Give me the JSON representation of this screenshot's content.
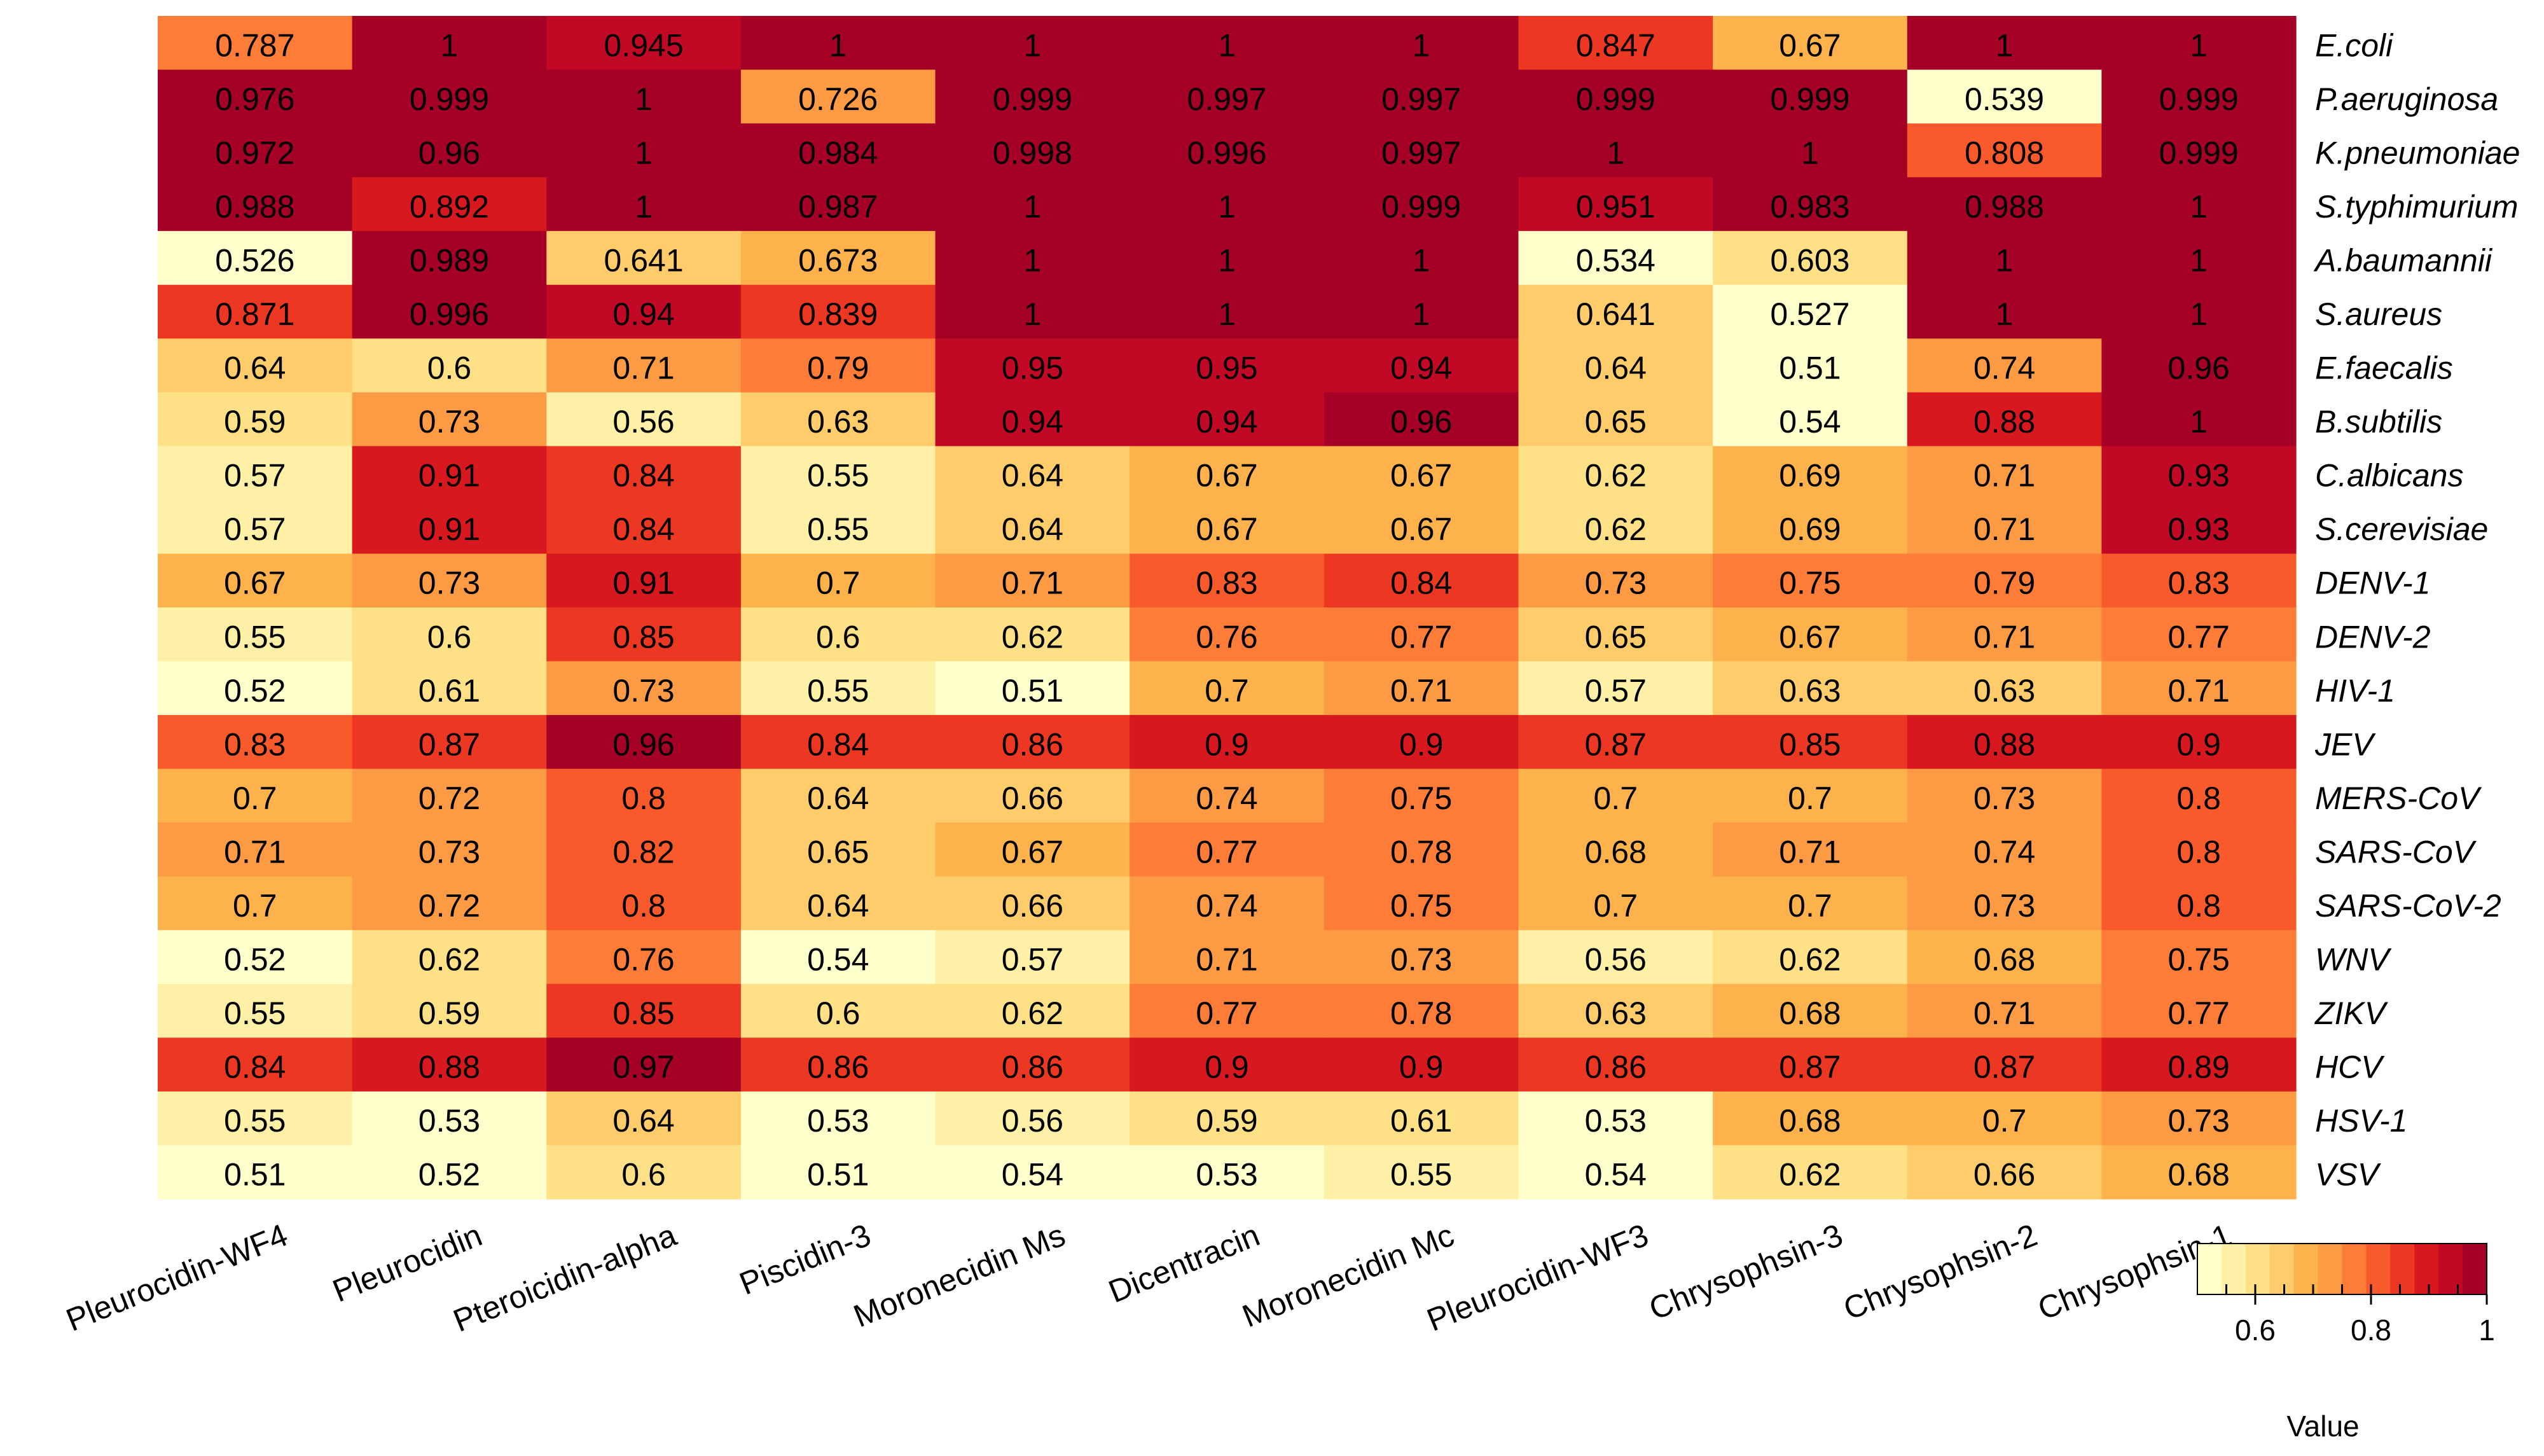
{
  "chart_data": {
    "type": "heatmap",
    "title": "",
    "columns": [
      "Pleurocidin-WF4",
      "Pleurocidin",
      "Pteroicidin-alpha",
      "Piscidin-3",
      "Moronecidin Ms",
      "Dicentracin",
      "Moronecidin Mc",
      "Pleurocidin-WF3",
      "Chrysophsin-3",
      "Chrysophsin-2",
      "Chrysophsin-1"
    ],
    "rows": [
      "E.coli",
      "P.aeruginosa",
      "K.pneumoniae",
      "S.typhimurium",
      "A.baumannii",
      "S.aureus",
      "E.faecalis",
      "B.subtilis",
      "C.albicans",
      "S.cerevisiae",
      "DENV-1",
      "DENV-2",
      "HIV-1",
      "JEV",
      "MERS-CoV",
      "SARS-CoV",
      "SARS-CoV-2",
      "WNV",
      "ZIKV",
      "HCV",
      "HSV-1",
      "VSV"
    ],
    "values": [
      [
        "0.787",
        "1",
        "0.945",
        "1",
        "1",
        "1",
        "1",
        "0.847",
        "0.67",
        "1",
        "1"
      ],
      [
        "0.976",
        "0.999",
        "1",
        "0.726",
        "0.999",
        "0.997",
        "0.997",
        "0.999",
        "0.999",
        "0.539",
        "0.999"
      ],
      [
        "0.972",
        "0.96",
        "1",
        "0.984",
        "0.998",
        "0.996",
        "0.997",
        "1",
        "1",
        "0.808",
        "0.999"
      ],
      [
        "0.988",
        "0.892",
        "1",
        "0.987",
        "1",
        "1",
        "0.999",
        "0.951",
        "0.983",
        "0.988",
        "1"
      ],
      [
        "0.526",
        "0.989",
        "0.641",
        "0.673",
        "1",
        "1",
        "1",
        "0.534",
        "0.603",
        "1",
        "1"
      ],
      [
        "0.871",
        "0.996",
        "0.94",
        "0.839",
        "1",
        "1",
        "1",
        "0.641",
        "0.527",
        "1",
        "1"
      ],
      [
        "0.64",
        "0.6",
        "0.71",
        "0.79",
        "0.95",
        "0.95",
        "0.94",
        "0.64",
        "0.51",
        "0.74",
        "0.96"
      ],
      [
        "0.59",
        "0.73",
        "0.56",
        "0.63",
        "0.94",
        "0.94",
        "0.96",
        "0.65",
        "0.54",
        "0.88",
        "1"
      ],
      [
        "0.57",
        "0.91",
        "0.84",
        "0.55",
        "0.64",
        "0.67",
        "0.67",
        "0.62",
        "0.69",
        "0.71",
        "0.93"
      ],
      [
        "0.57",
        "0.91",
        "0.84",
        "0.55",
        "0.64",
        "0.67",
        "0.67",
        "0.62",
        "0.69",
        "0.71",
        "0.93"
      ],
      [
        "0.67",
        "0.73",
        "0.91",
        "0.7",
        "0.71",
        "0.83",
        "0.84",
        "0.73",
        "0.75",
        "0.79",
        "0.83"
      ],
      [
        "0.55",
        "0.6",
        "0.85",
        "0.6",
        "0.62",
        "0.76",
        "0.77",
        "0.65",
        "0.67",
        "0.71",
        "0.77"
      ],
      [
        "0.52",
        "0.61",
        "0.73",
        "0.55",
        "0.51",
        "0.7",
        "0.71",
        "0.57",
        "0.63",
        "0.63",
        "0.71"
      ],
      [
        "0.83",
        "0.87",
        "0.96",
        "0.84",
        "0.86",
        "0.9",
        "0.9",
        "0.87",
        "0.85",
        "0.88",
        "0.9"
      ],
      [
        "0.7",
        "0.72",
        "0.8",
        "0.64",
        "0.66",
        "0.74",
        "0.75",
        "0.7",
        "0.7",
        "0.73",
        "0.8"
      ],
      [
        "0.71",
        "0.73",
        "0.82",
        "0.65",
        "0.67",
        "0.77",
        "0.78",
        "0.68",
        "0.71",
        "0.74",
        "0.8"
      ],
      [
        "0.7",
        "0.72",
        "0.8",
        "0.64",
        "0.66",
        "0.74",
        "0.75",
        "0.7",
        "0.7",
        "0.73",
        "0.8"
      ],
      [
        "0.52",
        "0.62",
        "0.76",
        "0.54",
        "0.57",
        "0.71",
        "0.73",
        "0.56",
        "0.62",
        "0.68",
        "0.75"
      ],
      [
        "0.55",
        "0.59",
        "0.85",
        "0.6",
        "0.62",
        "0.77",
        "0.78",
        "0.63",
        "0.68",
        "0.71",
        "0.77"
      ],
      [
        "0.84",
        "0.88",
        "0.97",
        "0.86",
        "0.86",
        "0.9",
        "0.9",
        "0.86",
        "0.87",
        "0.87",
        "0.89"
      ],
      [
        "0.55",
        "0.53",
        "0.64",
        "0.53",
        "0.56",
        "0.59",
        "0.61",
        "0.53",
        "0.68",
        "0.7",
        "0.73"
      ],
      [
        "0.51",
        "0.52",
        "0.6",
        "0.51",
        "0.54",
        "0.53",
        "0.55",
        "0.54",
        "0.62",
        "0.66",
        "0.68"
      ]
    ],
    "colorbar": {
      "title": "Value",
      "range": [
        0.5,
        1
      ],
      "tick_values": [
        0.6,
        0.8,
        1
      ],
      "tick_labels": [
        "0.6",
        "0.8",
        "1"
      ],
      "minor_ticks": [
        0.55,
        0.6,
        0.65,
        0.7,
        0.75,
        0.8,
        0.85,
        0.9,
        0.95
      ],
      "colors": [
        "#ffffcc",
        "#fff0a8",
        "#fee187",
        "#fecc6b",
        "#feb24c",
        "#fd9a44",
        "#fd7c37",
        "#f95a2c",
        "#ec3723",
        "#d7191f",
        "#c10926",
        "#a50026"
      ]
    }
  }
}
